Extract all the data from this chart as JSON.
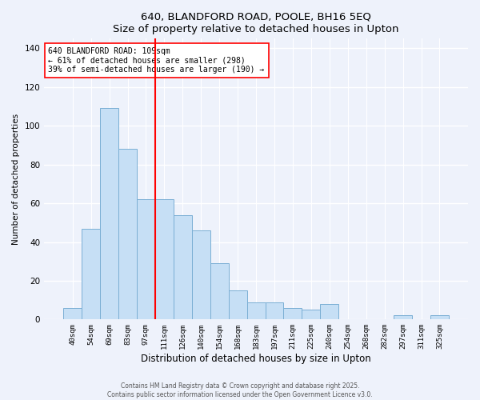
{
  "title1": "640, BLANDFORD ROAD, POOLE, BH16 5EQ",
  "title2": "Size of property relative to detached houses in Upton",
  "xlabel": "Distribution of detached houses by size in Upton",
  "ylabel": "Number of detached properties",
  "categories": [
    "40sqm",
    "54sqm",
    "69sqm",
    "83sqm",
    "97sqm",
    "111sqm",
    "126sqm",
    "140sqm",
    "154sqm",
    "168sqm",
    "183sqm",
    "197sqm",
    "211sqm",
    "225sqm",
    "240sqm",
    "254sqm",
    "268sqm",
    "282sqm",
    "297sqm",
    "311sqm",
    "325sqm"
  ],
  "values": [
    6,
    47,
    109,
    88,
    62,
    62,
    54,
    46,
    29,
    15,
    9,
    9,
    6,
    5,
    8,
    0,
    0,
    0,
    2,
    0,
    2
  ],
  "bar_color": "#c6dff5",
  "bar_edge_color": "#7bafd4",
  "vline_x": 5.0,
  "vline_color": "red",
  "annotation_line1": "640 BLANDFORD ROAD: 109sqm",
  "annotation_line2": "← 61% of detached houses are smaller (298)",
  "annotation_line3": "39% of semi-detached houses are larger (190) →",
  "annotation_box_color": "white",
  "annotation_box_edge": "red",
  "ylim": [
    0,
    145
  ],
  "yticks": [
    0,
    20,
    40,
    60,
    80,
    100,
    120,
    140
  ],
  "footer1": "Contains HM Land Registry data © Crown copyright and database right 2025.",
  "footer2": "Contains public sector information licensed under the Open Government Licence v3.0.",
  "background_color": "#eef2fb"
}
